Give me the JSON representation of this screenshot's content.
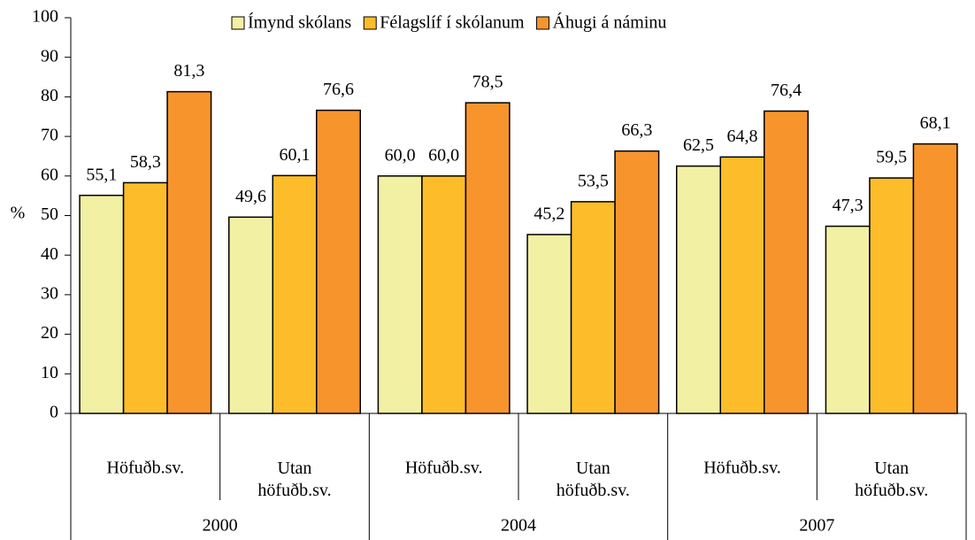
{
  "chart_data": {
    "type": "bar",
    "categories": [
      "Höfuðb.sv.",
      "Utan höfuðb.sv.",
      "Höfuðb.sv.",
      "Utan höfuðb.sv.",
      "Höfuðb.sv.",
      "Utan höfuðb.sv."
    ],
    "category_groups": [
      "2000",
      "2004",
      "2007"
    ],
    "y_label": "%",
    "series": [
      {
        "name": "Ímynd skólans",
        "color": "#f2f0a2",
        "values": [
          55.1,
          49.6,
          60.0,
          45.2,
          62.5,
          47.3
        ],
        "value_labels": [
          "55,1",
          "49,6",
          "60,0",
          "45,2",
          "62,5",
          "47,3"
        ]
      },
      {
        "name": "Félagslíf í skólanum",
        "color": "#fdbd2a",
        "values": [
          58.3,
          60.1,
          60.0,
          53.5,
          64.8,
          59.5
        ],
        "value_labels": [
          "58,3",
          "60,1",
          "60,0",
          "53,5",
          "64,8",
          "59,5"
        ]
      },
      {
        "name": "Áhugi á náminu",
        "color": "#f7952c",
        "values": [
          81.3,
          76.6,
          78.5,
          66.3,
          76.4,
          68.1
        ],
        "value_labels": [
          "81,3",
          "76,6",
          "78,5",
          "66,3",
          "76,4",
          "68,1"
        ]
      }
    ],
    "ylim": [
      0,
      100
    ],
    "yticks": [
      0,
      10,
      20,
      30,
      40,
      50,
      60,
      70,
      80,
      90,
      100
    ],
    "legend": "top"
  }
}
